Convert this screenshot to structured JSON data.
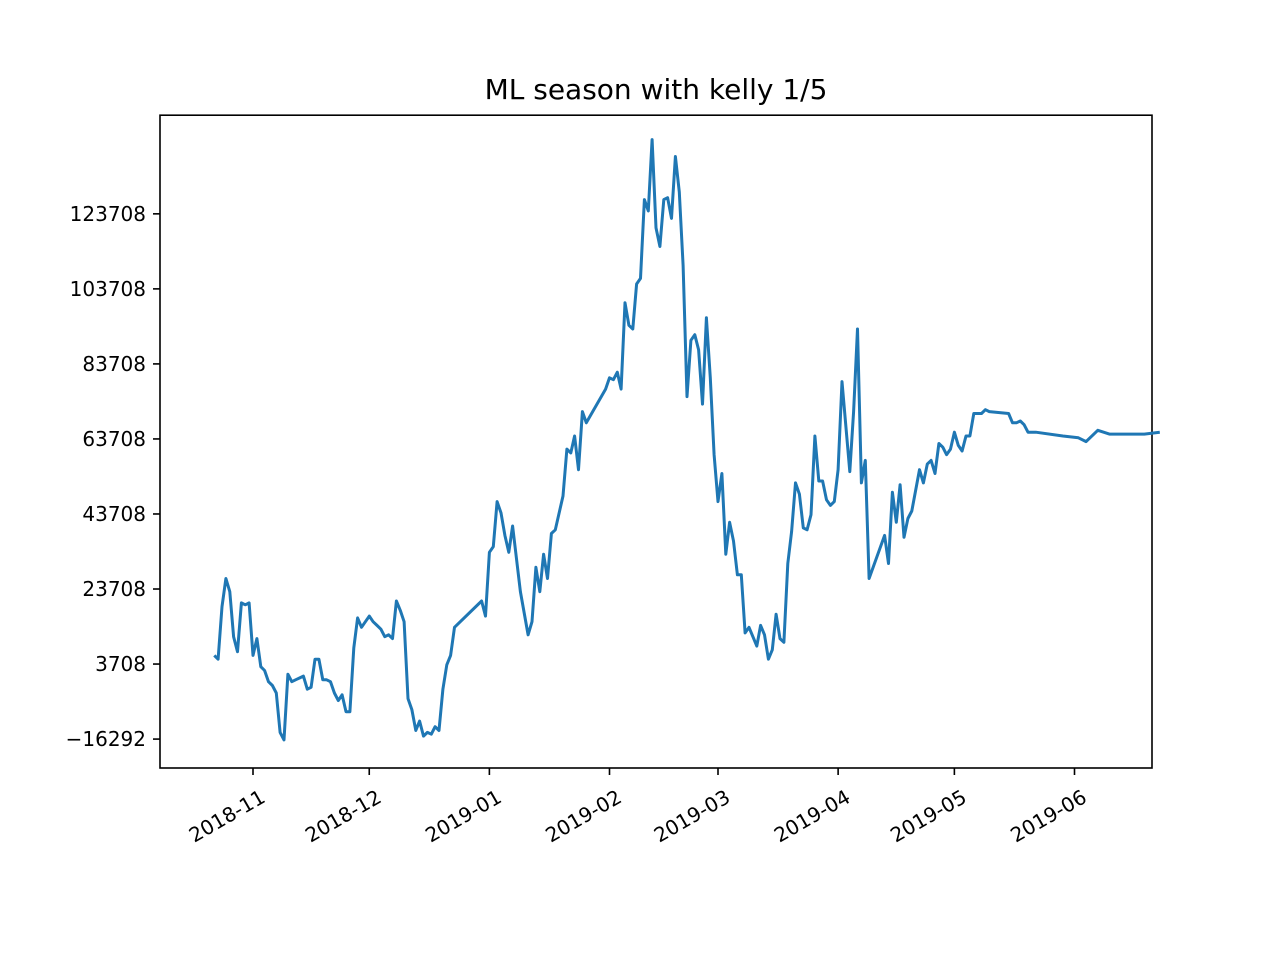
{
  "chart_data": {
    "type": "line",
    "title": "ML season with kelly 1/5",
    "xlabel": "",
    "ylabel": "",
    "x_type": "date",
    "xlim": [
      "2018-10-08",
      "2019-06-21"
    ],
    "ylim": [
      -24000,
      150000
    ],
    "grid": false,
    "legend": "none",
    "x_ticks": [
      "2018-11-01",
      "2018-12-01",
      "2019-01-01",
      "2019-02-01",
      "2019-03-01",
      "2019-04-01",
      "2019-05-01",
      "2019-06-01"
    ],
    "x_tick_labels": [
      "2018-11",
      "2018-12",
      "2019-01",
      "2019-02",
      "2019-03",
      "2019-04",
      "2019-05",
      "2019-06"
    ],
    "y_ticks": [
      -16292,
      3708,
      23708,
      43708,
      63708,
      83708,
      103708,
      123708
    ],
    "y_tick_labels": [
      "−16292",
      "3708",
      "23708",
      "43708",
      "63708",
      "83708",
      "103708",
      "123708"
    ],
    "series": [
      {
        "color": "#1f77b4",
        "points": [
          [
            "2018-10-22",
            6000
          ],
          [
            "2018-10-23",
            5000
          ],
          [
            "2018-10-24",
            19000
          ],
          [
            "2018-10-25",
            26500
          ],
          [
            "2018-10-26",
            23000
          ],
          [
            "2018-10-27",
            11000
          ],
          [
            "2018-10-28",
            7000
          ],
          [
            "2018-10-29",
            20000
          ],
          [
            "2018-10-30",
            19500
          ],
          [
            "2018-10-31",
            20000
          ],
          [
            "2018-11-01",
            6000
          ],
          [
            "2018-11-02",
            10500
          ],
          [
            "2018-11-03",
            3000
          ],
          [
            "2018-11-04",
            2000
          ],
          [
            "2018-11-05",
            -1000
          ],
          [
            "2018-11-06",
            -2000
          ],
          [
            "2018-11-07",
            -4000
          ],
          [
            "2018-11-08",
            -14500
          ],
          [
            "2018-11-09",
            -16500
          ],
          [
            "2018-11-10",
            1000
          ],
          [
            "2018-11-11",
            -1000
          ],
          [
            "2018-11-12",
            -500
          ],
          [
            "2018-11-13",
            0
          ],
          [
            "2018-11-14",
            500
          ],
          [
            "2018-11-15",
            -3000
          ],
          [
            "2018-11-16",
            -2500
          ],
          [
            "2018-11-17",
            5000
          ],
          [
            "2018-11-18",
            5000
          ],
          [
            "2018-11-19",
            -500
          ],
          [
            "2018-11-20",
            -500
          ],
          [
            "2018-11-21",
            -1000
          ],
          [
            "2018-11-22",
            -4000
          ],
          [
            "2018-11-23",
            -6000
          ],
          [
            "2018-11-24",
            -4500
          ],
          [
            "2018-11-25",
            -9000
          ],
          [
            "2018-11-26",
            -9000
          ],
          [
            "2018-11-27",
            8000
          ],
          [
            "2018-11-28",
            16000
          ],
          [
            "2018-11-29",
            13500
          ],
          [
            "2018-11-30",
            15000
          ],
          [
            "2018-12-01",
            16500
          ],
          [
            "2018-12-02",
            15000
          ],
          [
            "2018-12-03",
            14000
          ],
          [
            "2018-12-04",
            13000
          ],
          [
            "2018-12-05",
            11000
          ],
          [
            "2018-12-06",
            11500
          ],
          [
            "2018-12-07",
            10500
          ],
          [
            "2018-12-08",
            20500
          ],
          [
            "2018-12-09",
            18000
          ],
          [
            "2018-12-10",
            15000
          ],
          [
            "2018-12-11",
            -5500
          ],
          [
            "2018-12-12",
            -8500
          ],
          [
            "2018-12-13",
            -14000
          ],
          [
            "2018-12-14",
            -11500
          ],
          [
            "2018-12-15",
            -15500
          ],
          [
            "2018-12-16",
            -14500
          ],
          [
            "2018-12-17",
            -15000
          ],
          [
            "2018-12-18",
            -13000
          ],
          [
            "2018-12-19",
            -14000
          ],
          [
            "2018-12-20",
            -3000
          ],
          [
            "2018-12-21",
            3500
          ],
          [
            "2018-12-22",
            6000
          ],
          [
            "2018-12-23",
            13500
          ],
          [
            "2018-12-30",
            20500
          ],
          [
            "2018-12-31",
            16500
          ],
          [
            "2019-01-01",
            33500
          ],
          [
            "2019-01-02",
            35000
          ],
          [
            "2019-01-03",
            47000
          ],
          [
            "2019-01-04",
            44000
          ],
          [
            "2019-01-05",
            38000
          ],
          [
            "2019-01-06",
            33500
          ],
          [
            "2019-01-07",
            40500
          ],
          [
            "2019-01-09",
            23000
          ],
          [
            "2019-01-11",
            11500
          ],
          [
            "2019-01-12",
            15000
          ],
          [
            "2019-01-13",
            29500
          ],
          [
            "2019-01-14",
            23000
          ],
          [
            "2019-01-15",
            33000
          ],
          [
            "2019-01-16",
            26500
          ],
          [
            "2019-01-17",
            38500
          ],
          [
            "2019-01-18",
            39500
          ],
          [
            "2019-01-20",
            48500
          ],
          [
            "2019-01-21",
            61000
          ],
          [
            "2019-01-22",
            60000
          ],
          [
            "2019-01-23",
            64500
          ],
          [
            "2019-01-24",
            55500
          ],
          [
            "2019-01-25",
            71000
          ],
          [
            "2019-01-26",
            68000
          ],
          [
            "2019-01-31",
            77000
          ],
          [
            "2019-02-01",
            80000
          ],
          [
            "2019-02-02",
            79500
          ],
          [
            "2019-02-03",
            81500
          ],
          [
            "2019-02-04",
            77000
          ],
          [
            "2019-02-05",
            100000
          ],
          [
            "2019-02-06",
            94000
          ],
          [
            "2019-02-07",
            93000
          ],
          [
            "2019-02-08",
            105000
          ],
          [
            "2019-02-09",
            106500
          ],
          [
            "2019-02-10",
            127500
          ],
          [
            "2019-02-11",
            124500
          ],
          [
            "2019-02-12",
            143500
          ],
          [
            "2019-02-13",
            120000
          ],
          [
            "2019-02-14",
            115000
          ],
          [
            "2019-02-15",
            127500
          ],
          [
            "2019-02-16",
            128000
          ],
          [
            "2019-02-17",
            122500
          ],
          [
            "2019-02-18",
            139000
          ],
          [
            "2019-02-19",
            129500
          ],
          [
            "2019-02-20",
            110000
          ],
          [
            "2019-02-21",
            75000
          ],
          [
            "2019-02-22",
            90000
          ],
          [
            "2019-02-23",
            91500
          ],
          [
            "2019-02-24",
            87500
          ],
          [
            "2019-02-25",
            73000
          ],
          [
            "2019-02-26",
            96000
          ],
          [
            "2019-02-27",
            80000
          ],
          [
            "2019-02-28",
            59500
          ],
          [
            "2019-03-01",
            47000
          ],
          [
            "2019-03-02",
            54500
          ],
          [
            "2019-03-03",
            33000
          ],
          [
            "2019-03-04",
            41500
          ],
          [
            "2019-03-05",
            36500
          ],
          [
            "2019-03-06",
            27500
          ],
          [
            "2019-03-07",
            27500
          ],
          [
            "2019-03-08",
            12000
          ],
          [
            "2019-03-09",
            13500
          ],
          [
            "2019-03-10",
            11000
          ],
          [
            "2019-03-11",
            8500
          ],
          [
            "2019-03-12",
            14000
          ],
          [
            "2019-03-13",
            11500
          ],
          [
            "2019-03-14",
            5000
          ],
          [
            "2019-03-15",
            7500
          ],
          [
            "2019-03-16",
            17000
          ],
          [
            "2019-03-17",
            10500
          ],
          [
            "2019-03-18",
            9500
          ],
          [
            "2019-03-19",
            30500
          ],
          [
            "2019-03-20",
            39000
          ],
          [
            "2019-03-21",
            52000
          ],
          [
            "2019-03-22",
            49000
          ],
          [
            "2019-03-23",
            40000
          ],
          [
            "2019-03-24",
            39500
          ],
          [
            "2019-03-25",
            43500
          ],
          [
            "2019-03-26",
            64500
          ],
          [
            "2019-03-27",
            52500
          ],
          [
            "2019-03-28",
            52500
          ],
          [
            "2019-03-29",
            47500
          ],
          [
            "2019-03-30",
            46000
          ],
          [
            "2019-03-31",
            47000
          ],
          [
            "2019-04-01",
            55500
          ],
          [
            "2019-04-02",
            79000
          ],
          [
            "2019-04-04",
            55000
          ],
          [
            "2019-04-05",
            71000
          ],
          [
            "2019-04-06",
            93000
          ],
          [
            "2019-04-07",
            52000
          ],
          [
            "2019-04-08",
            58000
          ],
          [
            "2019-04-09",
            26500
          ],
          [
            "2019-04-13",
            38000
          ],
          [
            "2019-04-14",
            30500
          ],
          [
            "2019-04-15",
            49500
          ],
          [
            "2019-04-16",
            41500
          ],
          [
            "2019-04-17",
            51500
          ],
          [
            "2019-04-18",
            37500
          ],
          [
            "2019-04-19",
            42500
          ],
          [
            "2019-04-20",
            44500
          ],
          [
            "2019-04-22",
            55500
          ],
          [
            "2019-04-23",
            52000
          ],
          [
            "2019-04-24",
            57000
          ],
          [
            "2019-04-25",
            58000
          ],
          [
            "2019-04-26",
            54500
          ],
          [
            "2019-04-27",
            62500
          ],
          [
            "2019-04-28",
            61500
          ],
          [
            "2019-04-29",
            59500
          ],
          [
            "2019-04-30",
            61000
          ],
          [
            "2019-05-01",
            65500
          ],
          [
            "2019-05-02",
            62000
          ],
          [
            "2019-05-03",
            60500
          ],
          [
            "2019-05-04",
            64500
          ],
          [
            "2019-05-05",
            64500
          ],
          [
            "2019-05-06",
            70500
          ],
          [
            "2019-05-08",
            70500
          ],
          [
            "2019-05-09",
            71500
          ],
          [
            "2019-05-10",
            71000
          ],
          [
            "2019-05-15",
            70500
          ],
          [
            "2019-05-16",
            68000
          ],
          [
            "2019-05-17",
            68000
          ],
          [
            "2019-05-18",
            68500
          ],
          [
            "2019-05-19",
            67500
          ],
          [
            "2019-05-20",
            65500
          ],
          [
            "2019-05-22",
            65500
          ],
          [
            "2019-05-29",
            64500
          ],
          [
            "2019-06-02",
            64000
          ],
          [
            "2019-06-04",
            63000
          ],
          [
            "2019-06-07",
            66000
          ],
          [
            "2019-06-10",
            65000
          ],
          [
            "2019-06-19",
            65000
          ],
          [
            "2019-06-23",
            65500
          ]
        ]
      }
    ]
  }
}
